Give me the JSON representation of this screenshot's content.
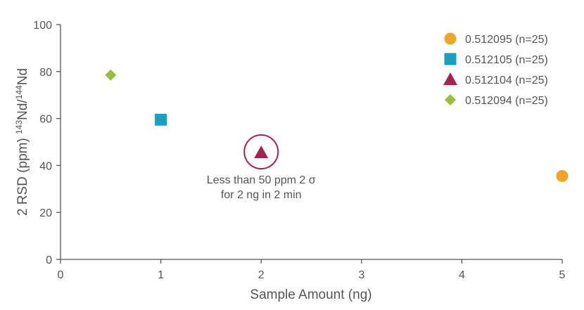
{
  "chart_data": {
    "type": "scatter",
    "xlabel": "Sample Amount (ng)",
    "ylabel": {
      "prefix": "2 RSD (ppm) ",
      "sup1": "143",
      "mid": "Nd/",
      "sup2": "144",
      "suffix": "Nd"
    },
    "xlim": [
      0,
      5
    ],
    "ylim": [
      0,
      100
    ],
    "x_ticks": [
      "0",
      "1",
      "2",
      "3",
      "4",
      "5"
    ],
    "y_ticks": [
      "0",
      "20",
      "40",
      "60",
      "80",
      "100"
    ],
    "grid": false,
    "legend_position": "top-right",
    "series": [
      {
        "name": "0.512095 (n=25)",
        "marker": "circle",
        "color": "#f0a526",
        "points": [
          {
            "x": 5.0,
            "y": 35.5
          }
        ]
      },
      {
        "name": "0.512105 (n=25)",
        "marker": "square",
        "color": "#1aa0bf",
        "points": [
          {
            "x": 1.0,
            "y": 59.5
          }
        ]
      },
      {
        "name": "0.512104 (n=25)",
        "marker": "triangle",
        "color": "#a6234f",
        "points": [
          {
            "x": 2.0,
            "y": 45.5
          }
        ]
      },
      {
        "name": "0.512094 (n=25)",
        "marker": "diamond",
        "color": "#9bbf3b",
        "points": [
          {
            "x": 0.5,
            "y": 78.5
          }
        ]
      }
    ],
    "annotations": [
      {
        "lines": [
          "Less than 50 ppm 2 σ",
          "for 2 ng in 2 min"
        ],
        "x": 2.0,
        "y": 45.5,
        "ring_color": "#a6234f"
      }
    ],
    "axis_color": "#555555"
  }
}
